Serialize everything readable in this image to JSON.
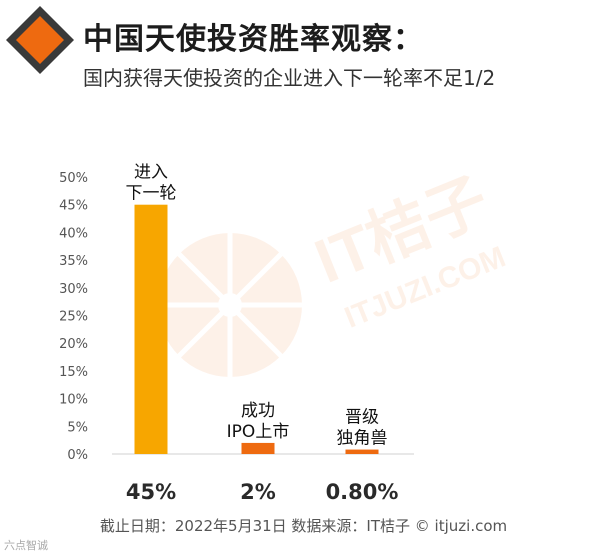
{
  "header": {
    "title": "中国天使投资胜率观察：",
    "subtitle": "国内获得天使投资的企业进入下一轮率不足1/2"
  },
  "watermark": {
    "brand": "IT桔子",
    "site": "ITJUZI.COM"
  },
  "chart_data": {
    "type": "bar",
    "categories": [
      "进入下一轮",
      "成功IPO上市",
      "晋级独角兽"
    ],
    "category_label_lines": [
      [
        "进入",
        "下一轮"
      ],
      [
        "成功",
        "IPO上市"
      ],
      [
        "晋级",
        "独角兽"
      ]
    ],
    "values": [
      45,
      2,
      0.8
    ],
    "value_labels": [
      "45%",
      "2%",
      "0.80%"
    ],
    "ylim": [
      0,
      50
    ],
    "yticks": [
      "0%",
      "5%",
      "10%",
      "15%",
      "20%",
      "25%",
      "30%",
      "35%",
      "40%",
      "45%",
      "50%"
    ],
    "colors": [
      "#F7A600",
      "#EE6A10",
      "#EE6A10"
    ],
    "grid": false,
    "legend": "none"
  },
  "footer": {
    "source": "截止日期：2022年5月31日    数据来源：IT桔子 © itjuzi.com",
    "corner_mark": "六点智诚"
  },
  "colors": {
    "brand_orange": "#EE6A10",
    "bar_gold": "#F7A600",
    "logo_dark": "#3a3a3a"
  }
}
